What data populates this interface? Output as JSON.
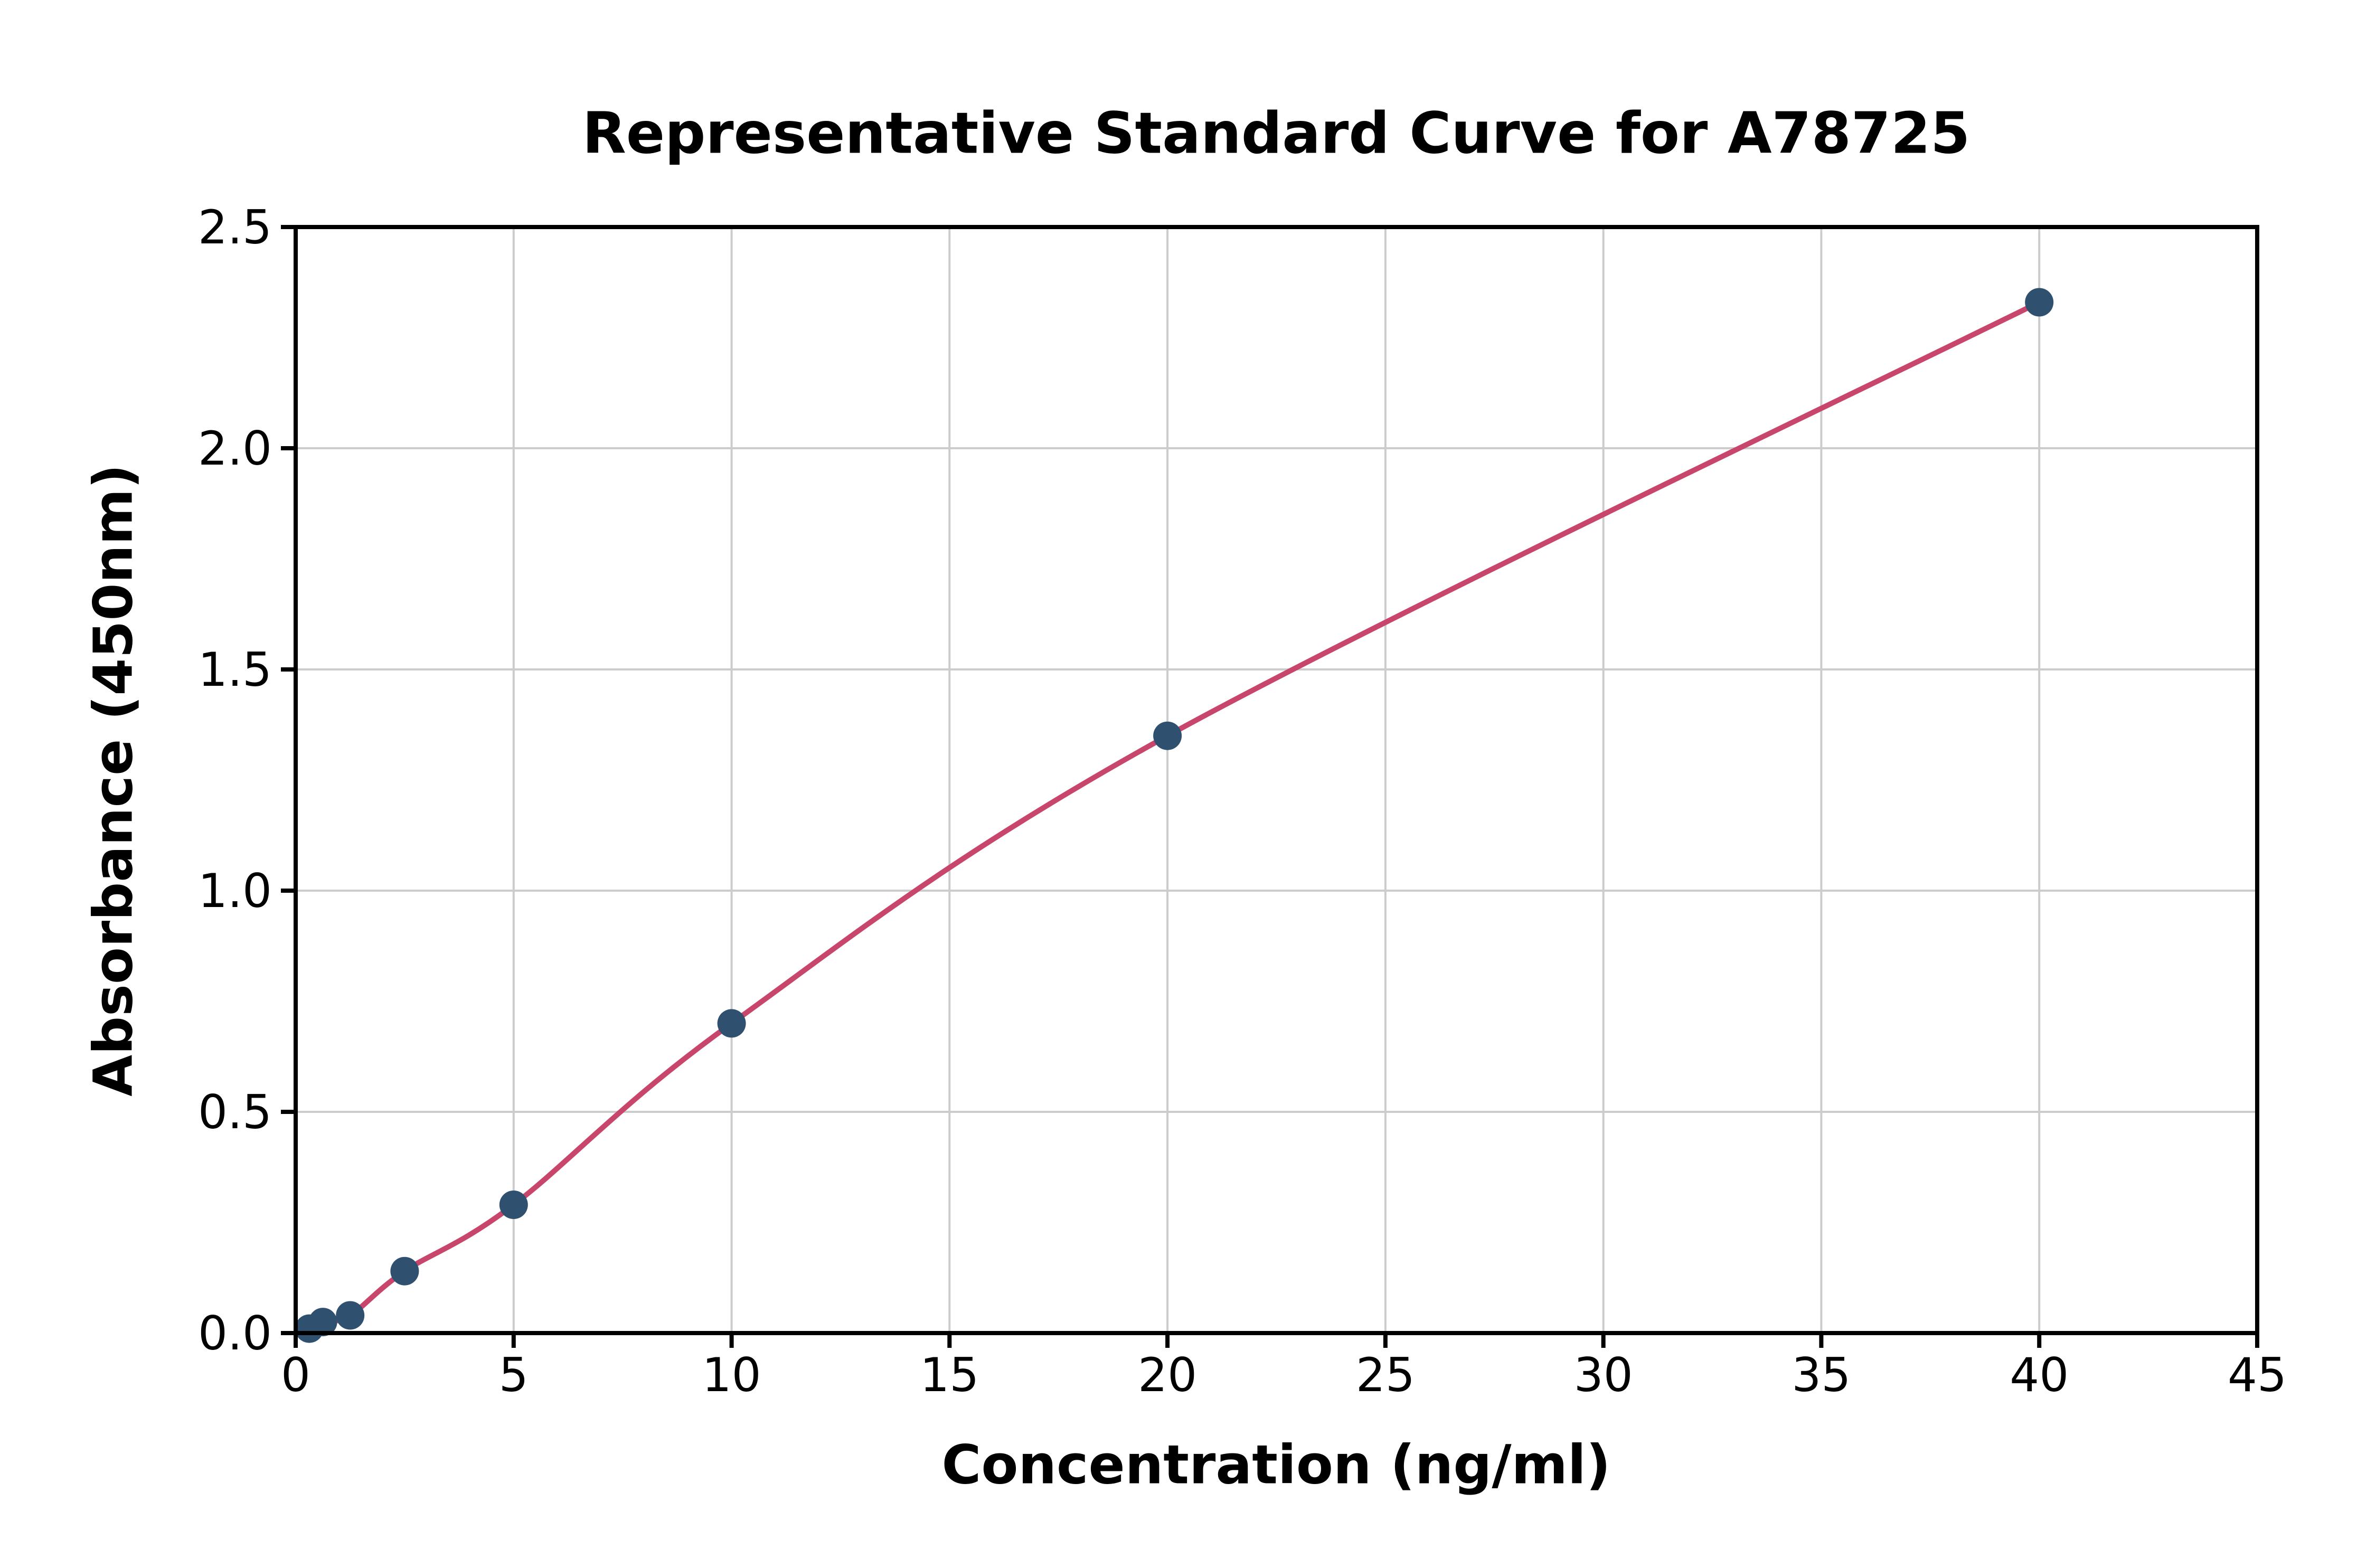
{
  "chart_data": {
    "type": "scatter",
    "title": "Representative Standard Curve for A78725",
    "xlabel": "Concentration (ng/ml)",
    "ylabel": "Absorbance (450nm)",
    "xlim": [
      0,
      45
    ],
    "ylim": [
      0,
      2.5
    ],
    "x_tick_values": [
      0,
      5,
      10,
      15,
      20,
      25,
      30,
      35,
      40,
      45
    ],
    "x_tick_labels": [
      "0",
      "5",
      "10",
      "15",
      "20",
      "25",
      "30",
      "35",
      "40",
      "45"
    ],
    "y_tick_values": [
      0,
      0.5,
      1.0,
      1.5,
      2.0,
      2.5
    ],
    "y_tick_labels": [
      "0.0",
      "0.5",
      "1.0",
      "1.5",
      "2.0",
      "2.5"
    ],
    "grid": true,
    "legend": "none",
    "grid_color": "#cccccc",
    "axis_color": "#000000",
    "series": [
      {
        "name": "fitted-curve",
        "type": "line",
        "color": "#c8456b",
        "x": [
          0.313,
          0.625,
          1.25,
          2.5,
          5,
          10,
          20,
          40
        ],
        "y": [
          0.01,
          0.025,
          0.04,
          0.14,
          0.29,
          0.7,
          1.35,
          2.33
        ]
      },
      {
        "name": "standard-points",
        "type": "scatter",
        "color": "#30506f",
        "x": [
          0.313,
          0.625,
          1.25,
          2.5,
          5,
          10,
          20,
          40
        ],
        "y": [
          0.01,
          0.025,
          0.04,
          0.14,
          0.29,
          0.7,
          1.35,
          2.33
        ]
      }
    ]
  }
}
